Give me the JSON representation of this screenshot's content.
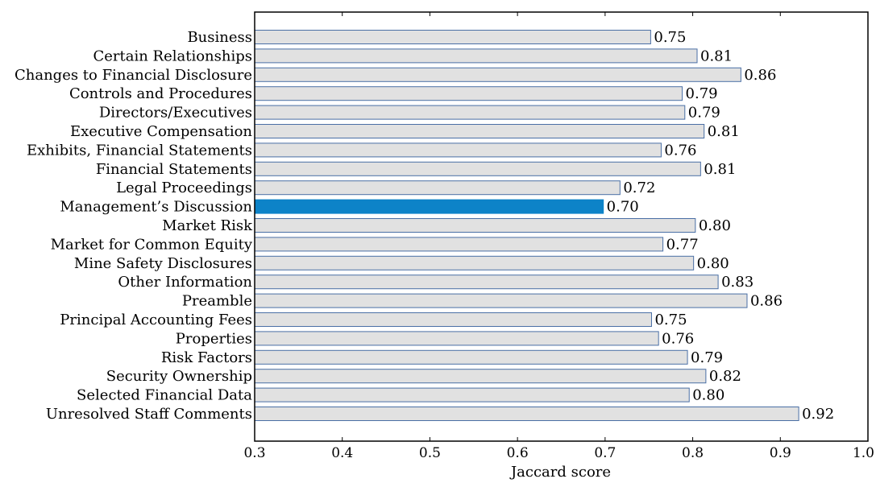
{
  "chart_data": {
    "type": "bar",
    "orientation": "horizontal",
    "categories": [
      "Business",
      "Certain Relationships",
      "Changes to Financial Disclosure",
      "Controls and Procedures",
      "Directors/Executives",
      "Executive Compensation",
      "Exhibits, Financial Statements",
      "Financial Statements",
      "Legal Proceedings",
      "Management’s Discussion",
      "Market Risk",
      "Market for Common Equity",
      "Mine Safety Disclosures",
      "Other Information",
      "Preamble",
      "Principal Accounting Fees",
      "Properties",
      "Risk Factors",
      "Security Ownership",
      "Selected Financial Data",
      "Unresolved Staff Comments"
    ],
    "values": [
      0.752,
      0.805,
      0.855,
      0.788,
      0.791,
      0.813,
      0.764,
      0.809,
      0.717,
      0.698,
      0.803,
      0.766,
      0.801,
      0.829,
      0.862,
      0.753,
      0.761,
      0.794,
      0.815,
      0.796,
      0.921
    ],
    "value_labels": [
      "0.75",
      "0.81",
      "0.86",
      "0.79",
      "0.79",
      "0.81",
      "0.76",
      "0.81",
      "0.72",
      "0.70",
      "0.80",
      "0.77",
      "0.80",
      "0.83",
      "0.86",
      "0.75",
      "0.76",
      "0.79",
      "0.82",
      "0.80",
      "0.92"
    ],
    "highlight_category": "Management’s Discussion",
    "xlim": [
      0.3,
      1.0
    ],
    "xticks": [
      0.3,
      0.4,
      0.5,
      0.6,
      0.7,
      0.8,
      0.9,
      1.0
    ],
    "xtick_labels": [
      "0.3",
      "0.4",
      "0.5",
      "0.6",
      "0.7",
      "0.8",
      "0.9",
      "1.0"
    ],
    "xlabel": "Jaccard score",
    "ylabel": "",
    "title": "",
    "grid": false,
    "colors": {
      "bar_fill": "#e1e1e1",
      "bar_stroke": "#4a6fa5",
      "highlight_fill": "#0d83c8",
      "highlight_stroke": "#0d83c8",
      "axis": "#000000"
    }
  }
}
